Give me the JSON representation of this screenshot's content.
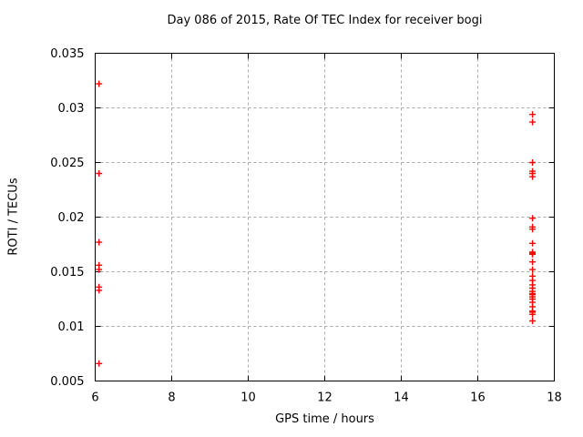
{
  "chart_data": {
    "type": "scatter",
    "title": "Day 086 of 2015, Rate Of TEC Index for receiver bogi",
    "xlabel": "GPS time / hours",
    "ylabel": "ROTI / TECUs",
    "xlim": [
      6,
      18
    ],
    "ylim": [
      0.005,
      0.035
    ],
    "x_ticks": [
      6,
      8,
      10,
      12,
      14,
      16,
      18
    ],
    "x_tick_labels": [
      "6",
      "8",
      "10",
      "12",
      "14",
      "16",
      "18"
    ],
    "y_ticks": [
      0.005,
      0.01,
      0.015,
      0.02,
      0.025,
      0.03,
      0.035
    ],
    "y_tick_labels": [
      "0.005",
      "0.01",
      "0.015",
      "0.02",
      "0.025",
      "0.03",
      "0.035"
    ],
    "grid": true,
    "legend_position": "none",
    "marker_shape": "plus",
    "series": [
      {
        "name": "ROTI",
        "points": [
          [
            6.1,
            0.0322
          ],
          [
            6.1,
            0.024
          ],
          [
            6.1,
            0.0177
          ],
          [
            6.1,
            0.0156
          ],
          [
            6.1,
            0.0152
          ],
          [
            6.1,
            0.0136
          ],
          [
            6.1,
            0.0133
          ],
          [
            6.1,
            0.0066
          ],
          [
            17.43,
            0.0294
          ],
          [
            17.43,
            0.0287
          ],
          [
            17.43,
            0.025
          ],
          [
            17.43,
            0.0242
          ],
          [
            17.43,
            0.024
          ],
          [
            17.43,
            0.0237
          ],
          [
            17.43,
            0.0199
          ],
          [
            17.43,
            0.0191
          ],
          [
            17.43,
            0.0189
          ],
          [
            17.43,
            0.0176
          ],
          [
            17.43,
            0.0168
          ],
          [
            17.43,
            0.0167
          ],
          [
            17.43,
            0.0166
          ],
          [
            17.43,
            0.0159
          ],
          [
            17.43,
            0.0152
          ],
          [
            17.43,
            0.0146
          ],
          [
            17.43,
            0.0142
          ],
          [
            17.43,
            0.0138
          ],
          [
            17.43,
            0.0135
          ],
          [
            17.43,
            0.0132
          ],
          [
            17.43,
            0.013
          ],
          [
            17.43,
            0.0129
          ],
          [
            17.43,
            0.0127
          ],
          [
            17.43,
            0.0125
          ],
          [
            17.43,
            0.0122
          ],
          [
            17.43,
            0.0118
          ],
          [
            17.43,
            0.0114
          ],
          [
            17.43,
            0.0113
          ],
          [
            17.43,
            0.0111
          ],
          [
            17.43,
            0.0105
          ]
        ]
      }
    ],
    "colors": {
      "marker": "#ff0000",
      "axis": "#000000",
      "grid": "#a8a8a8",
      "background": "#ffffff",
      "text": "#000000"
    }
  }
}
